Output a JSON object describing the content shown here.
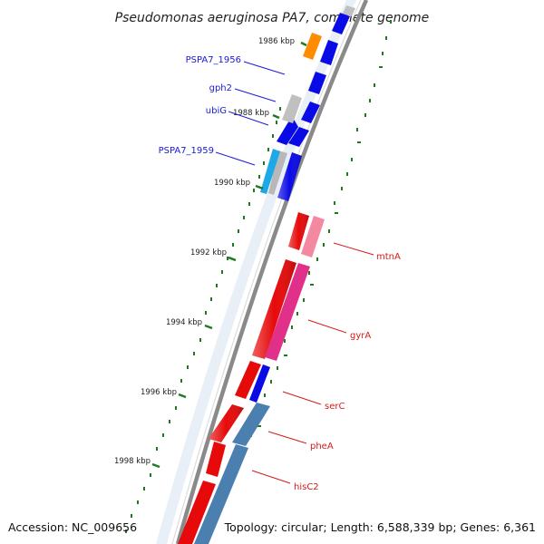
{
  "title": "Pseudomonas aeruginosa PA7, complete genome",
  "footer": {
    "accession": "Accession: NC_009656",
    "topology": "Topology: circular; Length: 6,588,339 bp; Genes: 6,361"
  },
  "axis": {
    "ticks": [
      {
        "kbp": 1986,
        "label": "1986 kbp"
      },
      {
        "kbp": 1988,
        "label": "1988 kbp"
      },
      {
        "kbp": 1990,
        "label": "1990 kbp"
      },
      {
        "kbp": 1992,
        "label": "1992 kbp"
      },
      {
        "kbp": 1994,
        "label": "1994 kbp"
      },
      {
        "kbp": 1996,
        "label": "1996 kbp"
      },
      {
        "kbp": 1998,
        "label": "1998 kbp"
      }
    ]
  },
  "genes": [
    {
      "name": "PSPA7_1956",
      "color": "#1a1ad9"
    },
    {
      "name": "gph2",
      "color": "#1a1ad9"
    },
    {
      "name": "ubiG",
      "color": "#1a1ad9"
    },
    {
      "name": "PSPA7_1959",
      "color": "#1a1ad9"
    },
    {
      "name": "mtnA",
      "color": "#d61a1a"
    },
    {
      "name": "gyrA",
      "color": "#d61a1a"
    },
    {
      "name": "serC",
      "color": "#d61a1a"
    },
    {
      "name": "pheA",
      "color": "#d61a1a"
    },
    {
      "name": "hisC2",
      "color": "#d61a1a"
    }
  ],
  "colors": {
    "backbone": "#8a8a8a",
    "tick": "#1f7a1f",
    "forward_strand": "#0a0ae6",
    "reverse_strand": "#e60a0a",
    "gc_skew": "#4a7fb0",
    "rna": "#ff8c00",
    "pseudo": "#c0c0c0",
    "gc_content_pink": "#f06080",
    "magenta": "#e0308a",
    "light_blue": "#1ea8e8"
  }
}
